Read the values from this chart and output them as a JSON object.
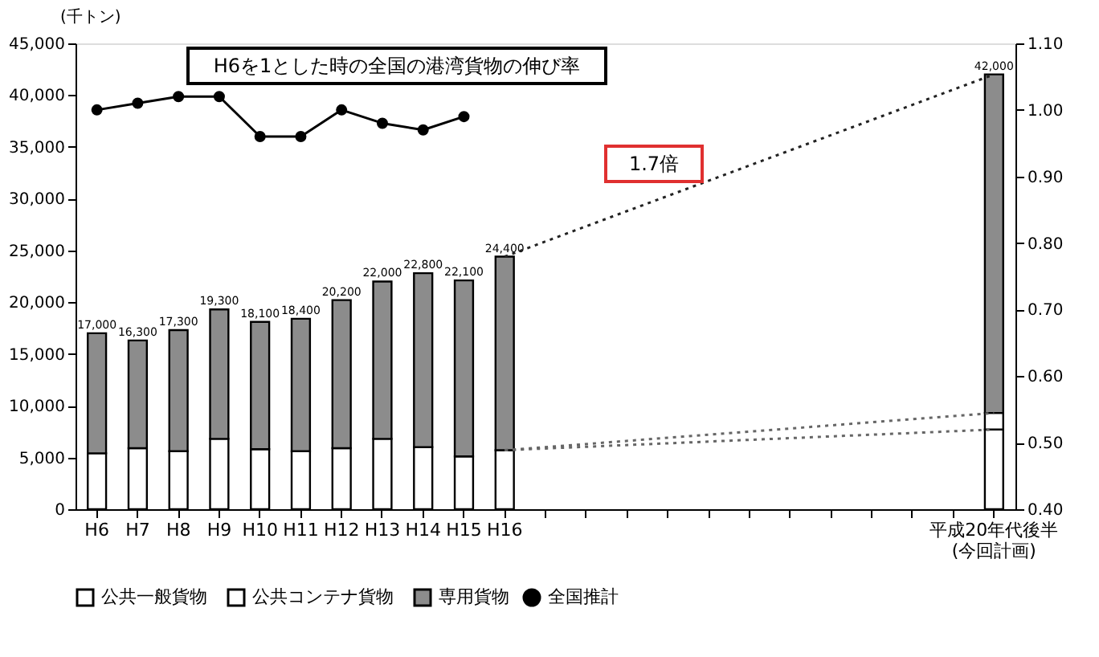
{
  "chart_data": {
    "type": "bar",
    "stacked": true,
    "ylabel": "(千トン)",
    "categories": [
      "H6",
      "H7",
      "H8",
      "H9",
      "H10",
      "H11",
      "H12",
      "H13",
      "H14",
      "H15",
      "H16",
      null,
      null,
      null,
      null,
      null,
      null,
      null,
      null,
      null,
      null,
      null,
      "平成20年代後半\n(今回計画)"
    ],
    "series": [
      {
        "name": "公共一般貨物",
        "type": "bar",
        "color": "#ffffff",
        "values": [
          5400,
          5900,
          5600,
          6800,
          5800,
          5600,
          5900,
          6800,
          6000,
          5100,
          5700,
          null,
          null,
          null,
          null,
          null,
          null,
          null,
          null,
          null,
          null,
          null,
          7700
        ]
      },
      {
        "name": "公共コンテナ貨物",
        "type": "bar",
        "color": "#ffffff",
        "values": [
          0,
          0,
          0,
          0,
          0,
          0,
          0,
          0,
          0,
          0,
          0,
          null,
          null,
          null,
          null,
          null,
          null,
          null,
          null,
          null,
          null,
          null,
          1600
        ]
      },
      {
        "name": "専用貨物",
        "type": "bar",
        "color": "#8c8c8c",
        "values": [
          11600,
          10400,
          11700,
          12500,
          12300,
          12800,
          14300,
          15200,
          16800,
          17000,
          18700,
          null,
          null,
          null,
          null,
          null,
          null,
          null,
          null,
          null,
          null,
          null,
          32700
        ]
      },
      {
        "name": "全国推計",
        "type": "line",
        "axis": "y2",
        "color": "#000000",
        "marker": "circle",
        "values": [
          1.0,
          1.01,
          1.02,
          1.02,
          0.96,
          0.96,
          1.0,
          0.98,
          0.97,
          0.99,
          null,
          null,
          null,
          null,
          null,
          null,
          null,
          null,
          null,
          null,
          null,
          null,
          null
        ]
      },
      {
        "type": "line",
        "color": "#222222",
        "line_style": "dotted",
        "x": [
          "H16",
          "平成20年代後半\n(今回計画)"
        ],
        "values": [
          24400,
          42000
        ]
      },
      {
        "type": "line",
        "color": "#666666",
        "line_style": "dotted",
        "x": [
          "H16",
          "平成20年代後半\n(今回計画)"
        ],
        "values": [
          5700,
          7700
        ]
      },
      {
        "type": "line",
        "color": "#666666",
        "line_style": "dotted",
        "x": [
          "H16",
          "平成20年代後半\n(今回計画)"
        ],
        "values": [
          5700,
          9300
        ]
      }
    ],
    "totals": [
      "17,000",
      "16,300",
      "17,300",
      "19,300",
      "18,100",
      "18,400",
      "20,200",
      "22,000",
      "22,800",
      "22,100",
      "24,400",
      null,
      null,
      null,
      null,
      null,
      null,
      null,
      null,
      null,
      null,
      null,
      "42,000"
    ],
    "ylim": [
      0,
      45000
    ],
    "yticks": [
      0,
      {
        "value": 5000,
        "label": "5,000"
      },
      {
        "value": 10000,
        "label": "10,000"
      },
      {
        "value": 15000,
        "label": "15,000"
      },
      {
        "value": 20000,
        "label": "20,000"
      },
      {
        "value": 25000,
        "label": "25,000"
      },
      {
        "value": 30000,
        "label": "30,000"
      },
      {
        "value": 35000,
        "label": "35,000"
      },
      {
        "value": 40000,
        "label": "40,000"
      },
      {
        "value": 45000,
        "label": "45,000"
      }
    ],
    "y2lim": [
      0.4,
      1.1
    ],
    "y2ticks": [
      {
        "value": 0.4,
        "label": "0.40"
      },
      {
        "value": 0.5,
        "label": "0.50"
      },
      {
        "value": 0.6,
        "label": "0.60"
      },
      {
        "value": 0.7,
        "label": "0.70"
      },
      {
        "value": 0.8,
        "label": "0.80"
      },
      {
        "value": 0.9,
        "label": "0.90"
      },
      {
        "value": 1.0,
        "label": "1.00"
      },
      {
        "value": 1.1,
        "label": "1.10"
      }
    ],
    "annotations": [
      "H6を1とした時の全国の港湾貨物の伸び率",
      "1.7倍"
    ],
    "grid": false,
    "legend": "bottom"
  }
}
